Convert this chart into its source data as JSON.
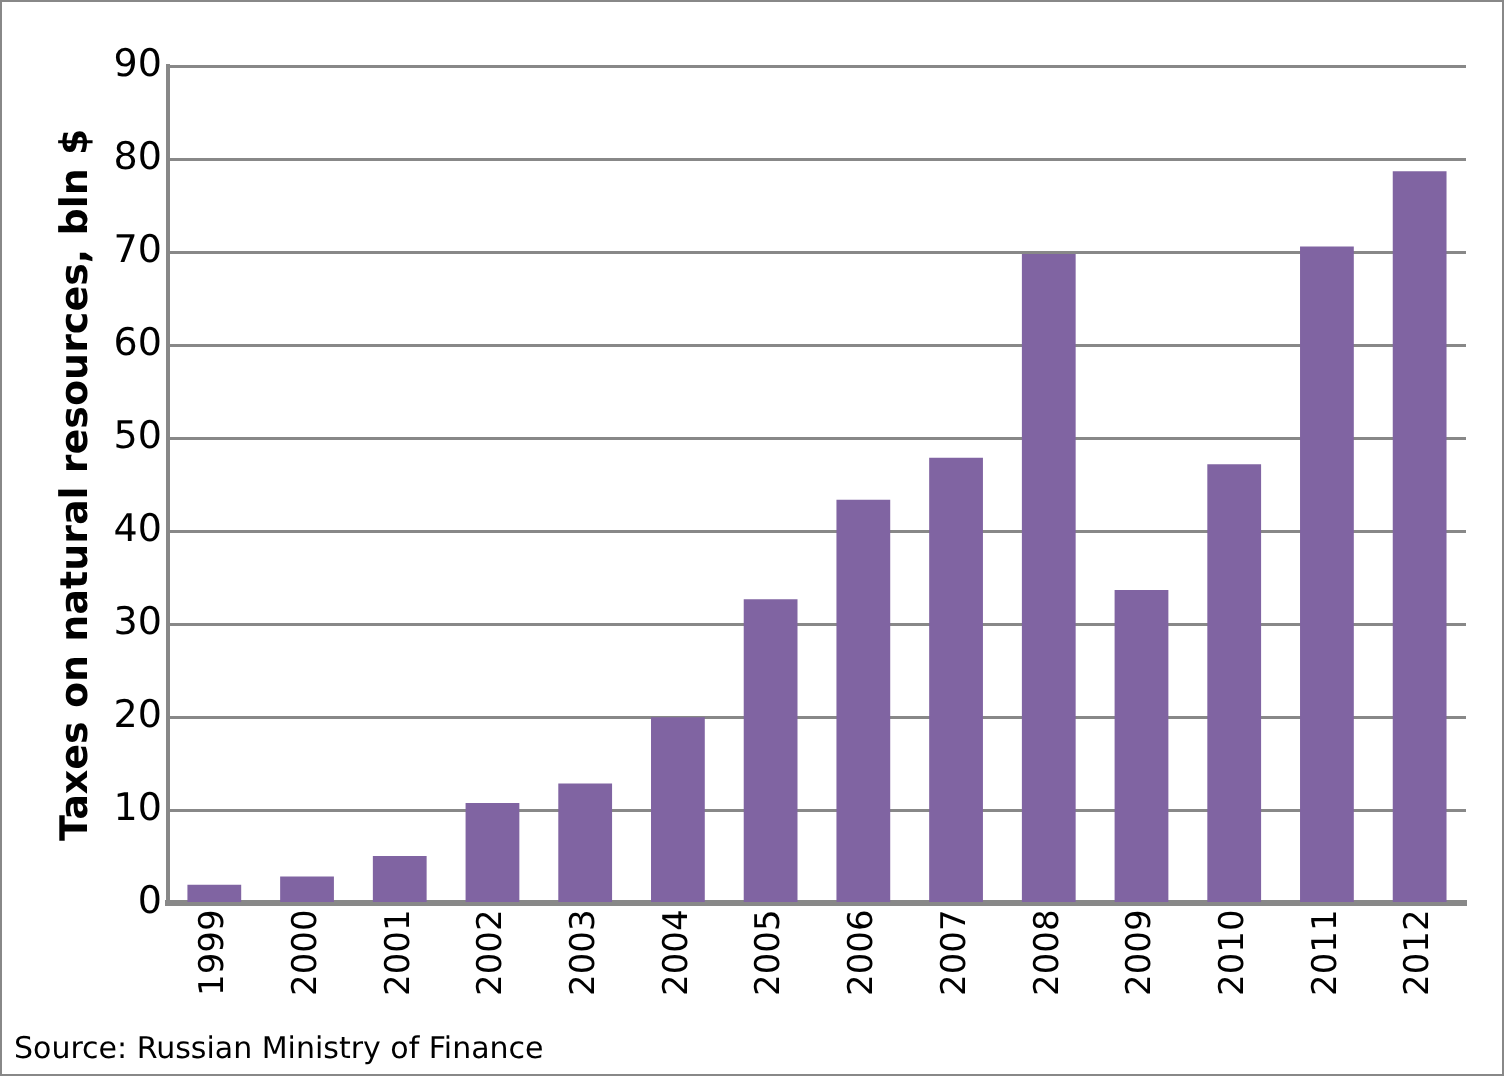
{
  "chart_data": {
    "type": "bar",
    "ylabel": "Taxes on natural resources, bln $",
    "categories": [
      "1999",
      "2000",
      "2001",
      "2002",
      "2003",
      "2004",
      "2005",
      "2006",
      "2007",
      "2008",
      "2009",
      "2010",
      "2011",
      "2012"
    ],
    "values": [
      2.0,
      2.9,
      5.1,
      10.8,
      12.9,
      20.0,
      32.7,
      43.4,
      47.9,
      69.8,
      33.7,
      47.2,
      70.6,
      78.7
    ],
    "color": "#8064a2",
    "ylim": [
      0,
      90
    ],
    "yticks": [
      0,
      10,
      20,
      30,
      40,
      50,
      60,
      70,
      80,
      90
    ],
    "grid": "y",
    "annotations": [
      "Source: Russian Ministry of Finance"
    ]
  }
}
